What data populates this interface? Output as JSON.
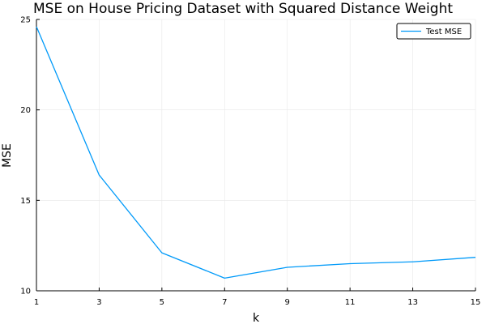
{
  "chart_data": {
    "type": "line",
    "title": "MSE on House Pricing Dataset with Squared Distance Weight",
    "xlabel": "k",
    "ylabel": "MSE",
    "xlim": [
      1,
      15
    ],
    "ylim": [
      10,
      25
    ],
    "x_ticks": [
      "1",
      "3",
      "5",
      "7",
      "9",
      "11",
      "13",
      "15"
    ],
    "y_ticks": [
      "10",
      "15",
      "20",
      "25"
    ],
    "x": [
      1,
      3,
      5,
      7,
      9,
      11,
      13,
      15
    ],
    "series": [
      {
        "name": "Test MSE",
        "color": "#009af9",
        "values": [
          24.6,
          16.4,
          12.1,
          10.7,
          11.3,
          11.5,
          11.6,
          11.85
        ]
      }
    ],
    "grid": true,
    "legend_position": "top-right"
  }
}
